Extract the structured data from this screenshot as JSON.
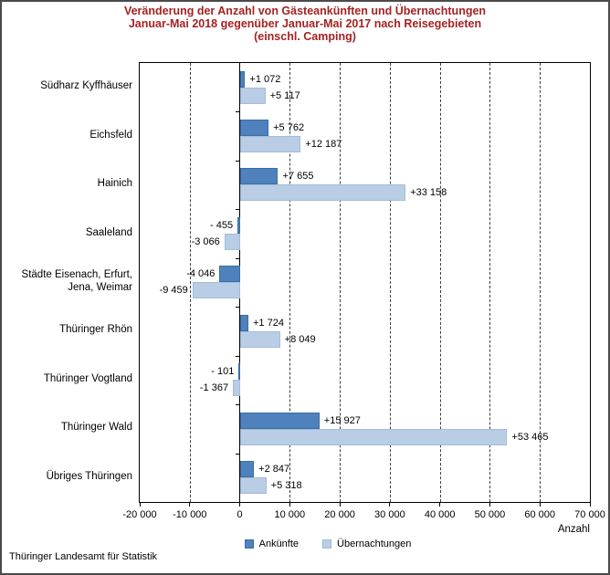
{
  "title": {
    "lines": [
      "Veränderung der Anzahl von Gästeankünften und Übernachtungen",
      "Januar-Mai 2018 gegenüber Januar-Mai 2017 nach Reisegebieten",
      "(einschl. Camping)"
    ],
    "color": "#A52222"
  },
  "chart_data": {
    "type": "bar",
    "orientation": "horizontal",
    "title": "Veränderung der Anzahl von Gästeankünften und Übernachtungen Januar-Mai 2018 gegenüber Januar-Mai 2017 nach Reisegebieten (einschl. Camping)",
    "categories": [
      "Südharz Kyffhäuser",
      "Eichsfeld",
      "Hainich",
      "Saaleland",
      "Städte Eisenach, Erfurt, Jena, Weimar",
      "Thüringer Rhön",
      "Thüringer Vogtland",
      "Thüringer Wald",
      "Übriges Thüringen"
    ],
    "series": [
      {
        "name": "Ankünfte",
        "color": "#4F81BD",
        "border_color": "#3A6EA5",
        "values": [
          1072,
          5762,
          7655,
          -455,
          -4046,
          1724,
          -101,
          15927,
          2847
        ],
        "value_labels": [
          "+1 072",
          "+5 762",
          "+7 655",
          "- 455",
          "-4 046",
          "+1 724",
          "- 101",
          "+15 927",
          "+2 847"
        ]
      },
      {
        "name": "Übernachtungen",
        "color": "#B9CDE5",
        "border_color": "#A4BcD8",
        "values": [
          5117,
          12187,
          33158,
          -3066,
          -9459,
          8049,
          -1367,
          53465,
          5318
        ],
        "value_labels": [
          "+5 117",
          "+12 187",
          "+33 158",
          "-3 066",
          "-9 459",
          "+8 049",
          "-1 367",
          "+53 465",
          "+5 318"
        ]
      }
    ],
    "xlabel": "Anzahl",
    "xlim": [
      -20000,
      70000
    ],
    "xticks": [
      {
        "value": -20000,
        "label": "-20 000"
      },
      {
        "value": -10000,
        "label": "-10 000"
      },
      {
        "value": 0,
        "label": "0"
      },
      {
        "value": 10000,
        "label": "10 000"
      },
      {
        "value": 20000,
        "label": "20 000"
      },
      {
        "value": 30000,
        "label": "30 000"
      },
      {
        "value": 40000,
        "label": "40 000"
      },
      {
        "value": 50000,
        "label": "50 000"
      },
      {
        "value": 60000,
        "label": "60 000"
      },
      {
        "value": 70000,
        "label": "70 000"
      }
    ],
    "grid": "vertical-dashed",
    "legend_position": "bottom-center"
  },
  "legend": {
    "items": [
      {
        "label": "Ankünfte",
        "color": "#4F81BD"
      },
      {
        "label": "Übernachtungen",
        "color": "#B9CDE5"
      }
    ]
  },
  "footer": {
    "source": "Thüringer Landesamt für Statistik"
  }
}
